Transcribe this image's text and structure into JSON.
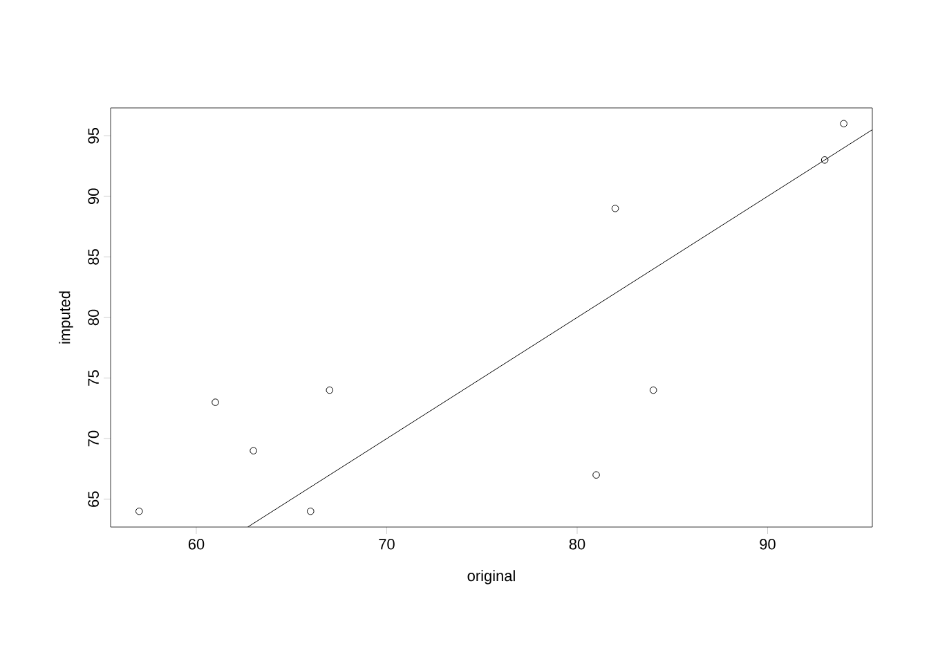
{
  "chart_data": {
    "type": "scatter",
    "xlabel": "original",
    "ylabel": "imputed",
    "xlim": [
      55.5,
      95.5
    ],
    "ylim": [
      62.7,
      97.3
    ],
    "xticks": [
      60,
      70,
      80,
      90
    ],
    "yticks": [
      65,
      70,
      75,
      80,
      85,
      90,
      95
    ],
    "grid": false,
    "marker": "circle",
    "series": [
      {
        "color": "#000000",
        "x": [
          57,
          61,
          63,
          66,
          67,
          81,
          82,
          84,
          93,
          94
        ],
        "values": [
          64,
          73,
          69,
          64,
          74,
          67,
          89,
          74,
          93,
          96
        ]
      },
      {
        "type": "line",
        "color": "#000000",
        "marker": "none",
        "x": [
          62.7,
          95.5
        ],
        "values": [
          62.7,
          95.5
        ]
      }
    ]
  }
}
